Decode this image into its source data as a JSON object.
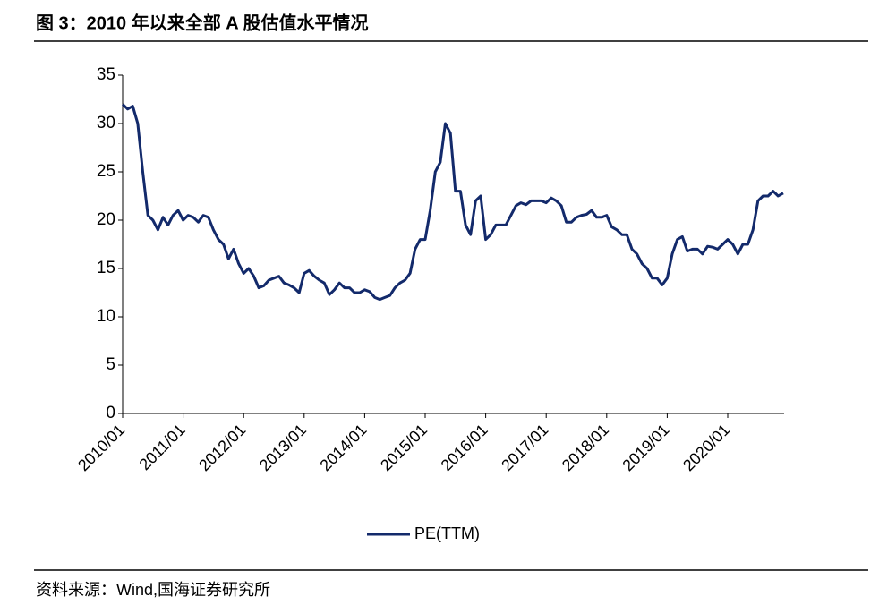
{
  "chart_data": {
    "type": "line",
    "title": "图 3：2010 年以来全部 A 股估值水平情况",
    "source": "资料来源：Wind,国海证券研究所",
    "x": [
      "2010/01",
      "2010/02",
      "2010/03",
      "2010/04",
      "2010/05",
      "2010/06",
      "2010/07",
      "2010/08",
      "2010/09",
      "2010/10",
      "2010/11",
      "2010/12",
      "2011/01",
      "2011/02",
      "2011/03",
      "2011/04",
      "2011/05",
      "2011/06",
      "2011/07",
      "2011/08",
      "2011/09",
      "2011/10",
      "2011/11",
      "2011/12",
      "2012/01",
      "2012/02",
      "2012/03",
      "2012/04",
      "2012/05",
      "2012/06",
      "2012/07",
      "2012/08",
      "2012/09",
      "2012/10",
      "2012/11",
      "2012/12",
      "2013/01",
      "2013/02",
      "2013/03",
      "2013/04",
      "2013/05",
      "2013/06",
      "2013/07",
      "2013/08",
      "2013/09",
      "2013/10",
      "2013/11",
      "2013/12",
      "2014/01",
      "2014/02",
      "2014/03",
      "2014/04",
      "2014/05",
      "2014/06",
      "2014/07",
      "2014/08",
      "2014/09",
      "2014/10",
      "2014/11",
      "2014/12",
      "2015/01",
      "2015/02",
      "2015/03",
      "2015/04",
      "2015/05",
      "2015/06",
      "2015/07",
      "2015/08",
      "2015/09",
      "2015/10",
      "2015/11",
      "2015/12",
      "2016/01",
      "2016/02",
      "2016/03",
      "2016/04",
      "2016/05",
      "2016/06",
      "2016/07",
      "2016/08",
      "2016/09",
      "2016/10",
      "2016/11",
      "2016/12",
      "2017/01",
      "2017/02",
      "2017/03",
      "2017/04",
      "2017/05",
      "2017/06",
      "2017/07",
      "2017/08",
      "2017/09",
      "2017/10",
      "2017/11",
      "2017/12",
      "2018/01",
      "2018/02",
      "2018/03",
      "2018/04",
      "2018/05",
      "2018/06",
      "2018/07",
      "2018/08",
      "2018/09",
      "2018/10",
      "2018/11",
      "2018/12",
      "2019/01",
      "2019/02",
      "2019/03",
      "2019/04",
      "2019/05",
      "2019/06",
      "2019/07",
      "2019/08",
      "2019/09",
      "2019/10",
      "2019/11",
      "2019/12",
      "2020/01",
      "2020/02",
      "2020/03",
      "2020/04",
      "2020/05",
      "2020/06",
      "2020/07",
      "2020/08",
      "2020/09",
      "2020/10",
      "2020/11",
      "2020/12"
    ],
    "series": [
      {
        "name": "PE(TTM)",
        "color": "#132a6b",
        "values": [
          32,
          31.5,
          31.8,
          30,
          25,
          20.5,
          20,
          19,
          20.3,
          19.5,
          20.5,
          21,
          20,
          20.5,
          20.3,
          19.8,
          20.5,
          20.3,
          19,
          18,
          17.5,
          16,
          17,
          15.5,
          14.5,
          15,
          14.2,
          13,
          13.2,
          13.8,
          14,
          14.2,
          13.5,
          13.3,
          13,
          12.5,
          14.5,
          14.8,
          14.2,
          13.8,
          13.5,
          12.3,
          12.8,
          13.5,
          13,
          13,
          12.5,
          12.5,
          12.8,
          12.6,
          12,
          11.8,
          12,
          12.2,
          13,
          13.5,
          13.8,
          14.5,
          17,
          18,
          18,
          21,
          25,
          26,
          30,
          29,
          23,
          23,
          19.5,
          18.5,
          22,
          22.5,
          18,
          18.5,
          19.5,
          19.5,
          19.5,
          20.5,
          21.5,
          21.8,
          21.6,
          22,
          22,
          22,
          21.8,
          22.3,
          22,
          21.5,
          19.8,
          19.8,
          20.3,
          20.5,
          20.6,
          21,
          20.3,
          20.3,
          20.5,
          19.3,
          19,
          18.5,
          18.5,
          17,
          16.5,
          15.5,
          15,
          14,
          14,
          13.3,
          14,
          16.5,
          18,
          18.3,
          16.8,
          17,
          17,
          16.5,
          17.3,
          17.2,
          17,
          17.5,
          18,
          17.5,
          16.5,
          17.5,
          17.5,
          19,
          22,
          22.5,
          22.5,
          23,
          22.5,
          22.8
        ]
      }
    ],
    "xticks": [
      "2010/01",
      "2011/01",
      "2012/01",
      "2013/01",
      "2014/01",
      "2015/01",
      "2016/01",
      "2017/01",
      "2018/01",
      "2019/01",
      "2020/01"
    ],
    "ylim": [
      0,
      35
    ],
    "yticks": [
      0,
      5,
      10,
      15,
      20,
      25,
      30,
      35
    ],
    "grid": false,
    "legend": "bottom"
  }
}
